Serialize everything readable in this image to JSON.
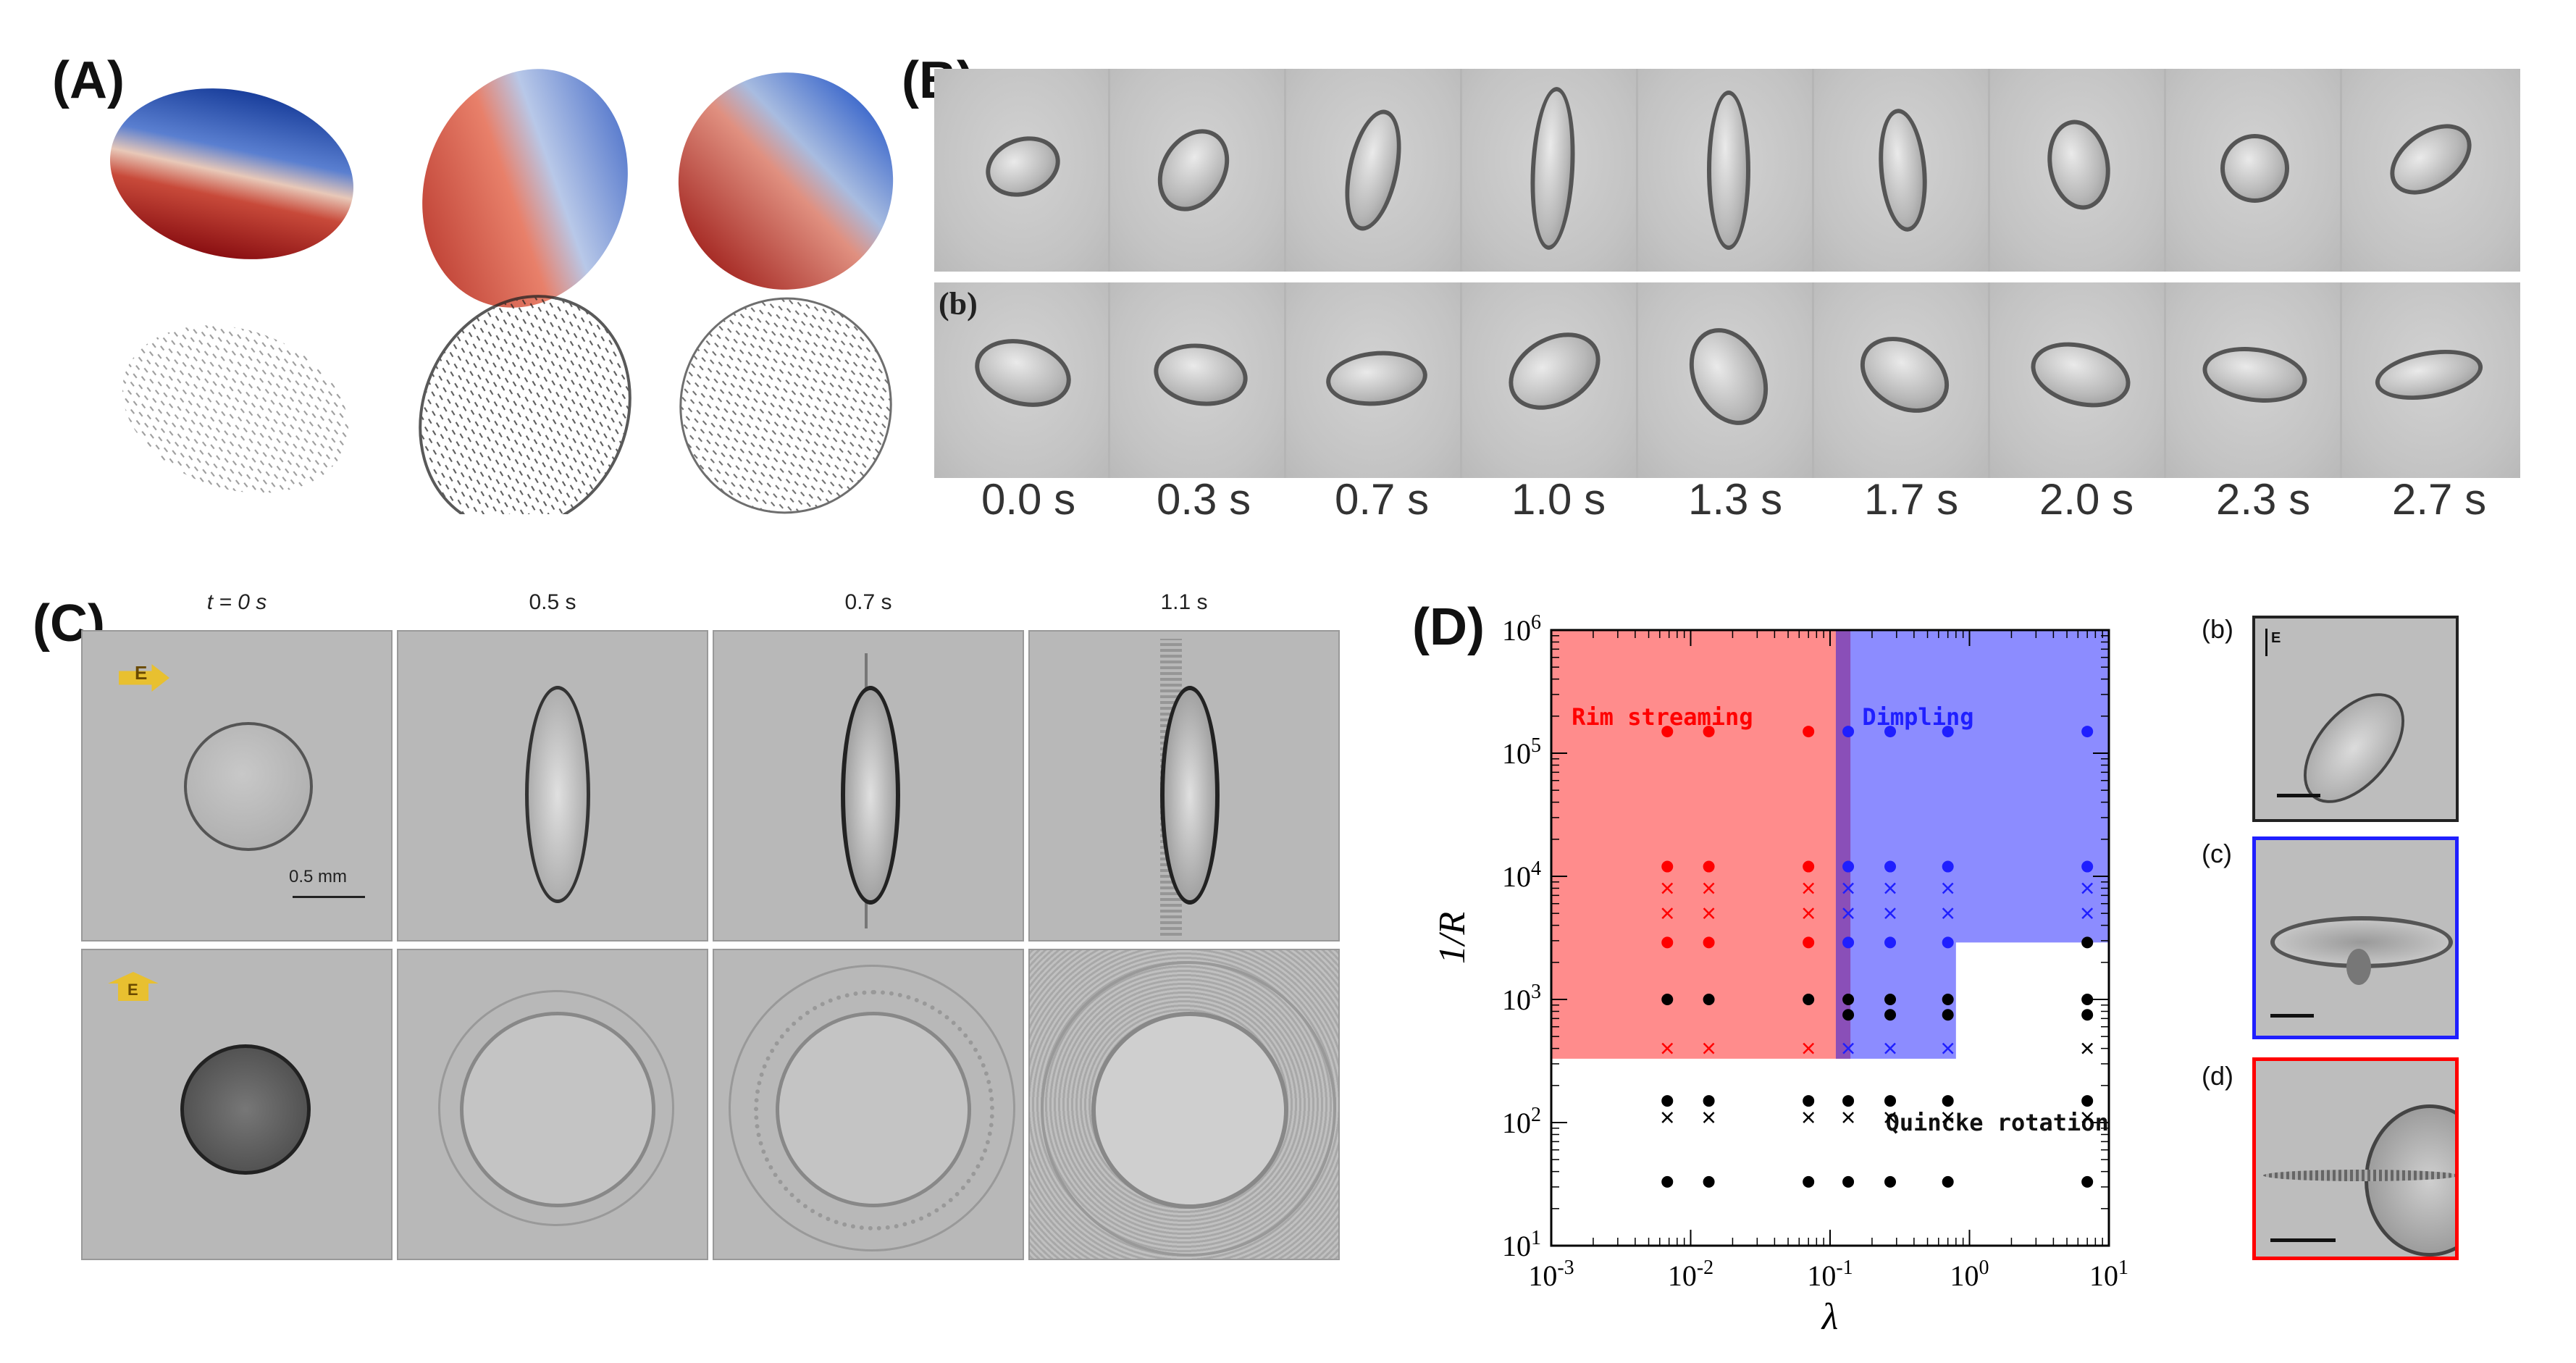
{
  "panel_labels": {
    "a": "(A)",
    "b": "(B)",
    "c": "(C)",
    "d": "(D)"
  },
  "panel_b": {
    "row2_label": "(b)",
    "times": [
      "0.0 s",
      "0.3 s",
      "0.7 s",
      "1.0 s",
      "1.3 s",
      "1.7 s",
      "2.0 s",
      "2.3 s",
      "2.7 s"
    ]
  },
  "panel_c": {
    "times": [
      "t = 0 s",
      "0.5 s",
      "0.7 s",
      "1.1 s"
    ],
    "field_label": "E",
    "scale_bar": "0.5 mm"
  },
  "panel_d": {
    "side_labels": [
      "(b)",
      "(c)",
      "(d)"
    ],
    "field_label": "E",
    "colors": {
      "rim": "#ff8c8c",
      "dimpling": "#8c8cff",
      "overlap": "#8a4fb8",
      "red": "#ff0000",
      "blue": "#1f1fff",
      "black": "#000000"
    }
  },
  "chart_data": {
    "type": "scatter",
    "xlabel": "λ",
    "ylabel": "1/R",
    "xscale": "log",
    "yscale": "log",
    "xlim": [
      0.001,
      10
    ],
    "ylim": [
      10,
      1000000
    ],
    "x_ticks": [
      "10-3",
      "10-2",
      "10-1",
      "100",
      "101"
    ],
    "y_ticks": [
      "101",
      "102",
      "103",
      "104",
      "105",
      "106"
    ],
    "regions": [
      {
        "name": "Rim streaming",
        "color": "#ff8c8c"
      },
      {
        "name": "Dimpling",
        "color": "#8c8cff"
      },
      {
        "name": "Quincke rotation",
        "color": "#ffffff"
      }
    ],
    "series": [
      {
        "color": "red",
        "marker": "circle",
        "points": [
          [
            0.0068,
            150000
          ],
          [
            0.0135,
            150000
          ],
          [
            0.07,
            150000
          ],
          [
            0.0068,
            12000
          ],
          [
            0.0135,
            12000
          ],
          [
            0.07,
            12000
          ],
          [
            0.0068,
            2900
          ],
          [
            0.0135,
            2900
          ],
          [
            0.07,
            2900
          ]
        ]
      },
      {
        "color": "red",
        "marker": "x",
        "points": [
          [
            0.0068,
            8000
          ],
          [
            0.0135,
            8000
          ],
          [
            0.07,
            8000
          ],
          [
            0.0068,
            5000
          ],
          [
            0.0135,
            5000
          ],
          [
            0.07,
            5000
          ],
          [
            0.0068,
            400
          ],
          [
            0.0135,
            400
          ],
          [
            0.07,
            400
          ]
        ]
      },
      {
        "color": "blue",
        "marker": "circle",
        "points": [
          [
            0.135,
            150000
          ],
          [
            0.27,
            150000
          ],
          [
            0.7,
            150000
          ],
          [
            7,
            150000
          ],
          [
            0.135,
            12000
          ],
          [
            0.27,
            12000
          ],
          [
            0.7,
            12000
          ],
          [
            7,
            12000
          ],
          [
            0.135,
            2900
          ],
          [
            0.27,
            2900
          ],
          [
            0.7,
            2900
          ]
        ]
      },
      {
        "color": "blue",
        "marker": "x",
        "points": [
          [
            0.135,
            8000
          ],
          [
            0.27,
            8000
          ],
          [
            0.7,
            8000
          ],
          [
            7,
            8000
          ],
          [
            0.135,
            5000
          ],
          [
            0.27,
            5000
          ],
          [
            0.7,
            5000
          ],
          [
            7,
            5000
          ],
          [
            0.135,
            400
          ],
          [
            0.27,
            400
          ],
          [
            0.7,
            400
          ]
        ]
      },
      {
        "color": "black",
        "marker": "circle",
        "points": [
          [
            0.0068,
            1000
          ],
          [
            0.0135,
            1000
          ],
          [
            0.07,
            1000
          ],
          [
            0.135,
            1000
          ],
          [
            0.27,
            1000
          ],
          [
            0.7,
            1000
          ],
          [
            7,
            1000
          ],
          [
            0.135,
            750
          ],
          [
            0.27,
            750
          ],
          [
            0.7,
            750
          ],
          [
            7,
            750
          ],
          [
            7,
            2900
          ],
          [
            0.0068,
            150
          ],
          [
            0.0135,
            150
          ],
          [
            0.07,
            150
          ],
          [
            0.135,
            150
          ],
          [
            0.27,
            150
          ],
          [
            0.7,
            150
          ],
          [
            7,
            150
          ],
          [
            0.0068,
            33
          ],
          [
            0.0135,
            33
          ],
          [
            0.07,
            33
          ],
          [
            0.135,
            33
          ],
          [
            0.27,
            33
          ],
          [
            0.7,
            33
          ],
          [
            7,
            33
          ]
        ]
      },
      {
        "color": "black",
        "marker": "x",
        "points": [
          [
            0.0068,
            110
          ],
          [
            0.0135,
            110
          ],
          [
            0.07,
            110
          ],
          [
            0.135,
            110
          ],
          [
            0.27,
            110
          ],
          [
            0.7,
            110
          ],
          [
            7,
            110
          ],
          [
            7,
            400
          ]
        ]
      }
    ]
  }
}
